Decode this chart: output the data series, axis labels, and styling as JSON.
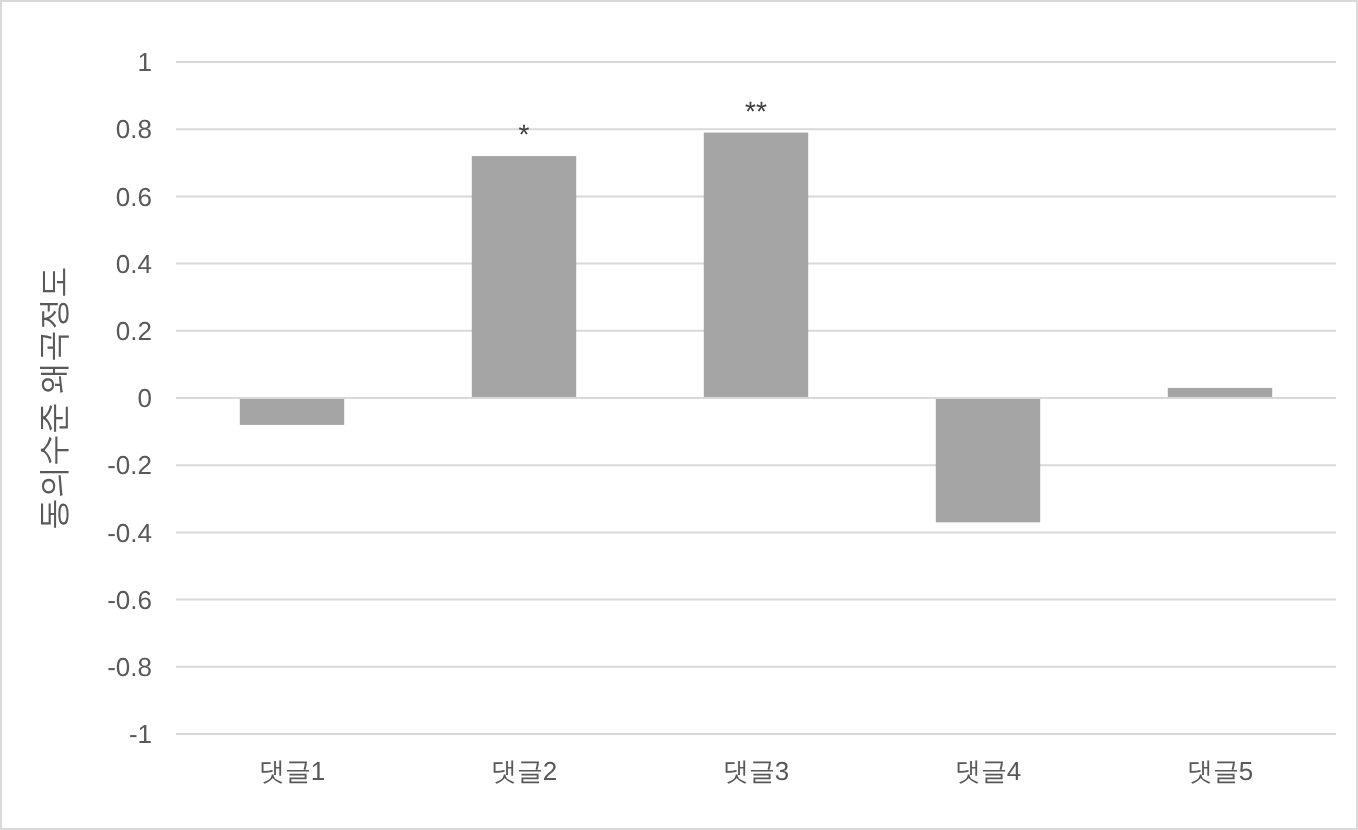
{
  "chart_data": {
    "type": "bar",
    "ylabel": "동의수준 왜곡정도",
    "categories": [
      "댓글1",
      "댓글2",
      "댓글3",
      "댓글4",
      "댓글5"
    ],
    "values": [
      -0.08,
      0.72,
      0.79,
      -0.37,
      0.03
    ],
    "color": "#a5a5a5",
    "ylim": [
      -1,
      1
    ],
    "yticks": [
      -1,
      -0.8,
      -0.6,
      -0.4,
      -0.2,
      0,
      0.2,
      0.4,
      0.6,
      0.8,
      1
    ],
    "grid": "y",
    "annotations": [
      {
        "text": "*",
        "x": "댓글2",
        "y": 0.72
      },
      {
        "text": "**",
        "x": "댓글3",
        "y": 0.79
      }
    ]
  }
}
